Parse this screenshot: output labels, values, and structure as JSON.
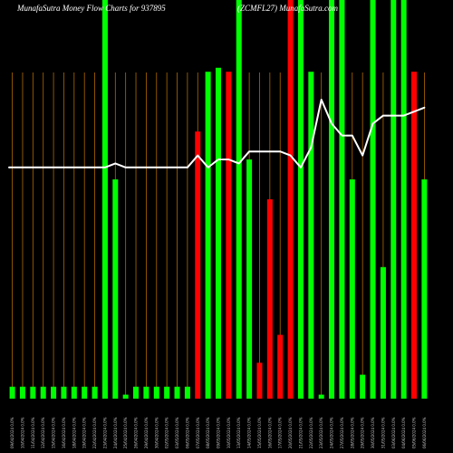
{
  "header": {
    "title_left": "MunafaSutra  Money Flow  Charts for 937895",
    "title_right": "(ZCMFL27) MunafaSutra.com"
  },
  "colors": {
    "background": "#000000",
    "up": "#00ff00",
    "down": "#ff0000",
    "gridline": "#b06a00",
    "line": "#ffffff"
  },
  "chart_data": {
    "type": "bar",
    "title": "",
    "xlabel": "",
    "ylabel": "",
    "ylim": [
      0,
      100
    ],
    "grid": "vertical",
    "categories": [
      "09/04/2024 0.0%",
      "10/04/2024 0.0%",
      "11/04/2024 0.0%",
      "12/04/2024 0.0%",
      "15/04/2024 0.0%",
      "16/04/2024 0.0%",
      "18/04/2024 0.0%",
      "19/04/2024 0.0%",
      "22/04/2024 0.0%",
      "23/04/2024 0.0%",
      "24/04/2024 0.0%",
      "25/04/2024 0.0%",
      "26/04/2024 0.0%",
      "29/04/2024 0.0%",
      "30/04/2024 0.0%",
      "02/05/2024 0.0%",
      "03/05/2024 0.0%",
      "06/05/2024 0.0%",
      "07/05/2024 0.0%",
      "08/05/2024 0.0%",
      "09/05/2024 0.0%",
      "10/05/2024 0.0%",
      "13/05/2024 0.0%",
      "14/05/2024 0.0%",
      "15/05/2024 0.0%",
      "16/05/2024 0.0%",
      "17/05/2024 0.0%",
      "20/05/2024 0.0%",
      "21/05/2024 0.0%",
      "22/05/2024 0.0%",
      "23/05/2024 0.0%",
      "24/05/2024 0.0%",
      "27/05/2024 0.0%",
      "28/05/2024 0.0%",
      "29/05/2024 0.0%",
      "30/05/2024 0.0%",
      "31/05/2024 0.0%",
      "03/06/2024 0.0%",
      "04/06/2024 0.0%",
      "05/06/2024 0.0%",
      "06/06/2024 0.0%"
    ],
    "series": [
      {
        "values": [
          3,
          3,
          3,
          3,
          3,
          3,
          3,
          3,
          3,
          100,
          55,
          1,
          3,
          3,
          3,
          3,
          3,
          3,
          67,
          82,
          83,
          82,
          100,
          60,
          9,
          50,
          16,
          100,
          100,
          82,
          1,
          100,
          100,
          55,
          6,
          100,
          33,
          100,
          100,
          82,
          55
        ],
        "directions": [
          "up",
          "up",
          "up",
          "up",
          "up",
          "up",
          "up",
          "up",
          "up",
          "up",
          "up",
          "up",
          "up",
          "up",
          "up",
          "up",
          "up",
          "up",
          "down",
          "up",
          "up",
          "down",
          "up",
          "up",
          "down",
          "down",
          "down",
          "down",
          "up",
          "up",
          "up",
          "up",
          "up",
          "up",
          "up",
          "up",
          "up",
          "up",
          "up",
          "down",
          "up"
        ]
      },
      {
        "line_values": [
          58,
          58,
          58,
          58,
          58,
          58,
          58,
          58,
          58,
          58,
          59,
          58,
          58,
          58,
          58,
          58,
          58,
          58,
          61,
          58,
          60,
          60,
          59,
          62,
          62,
          62,
          62,
          61,
          58,
          63,
          75,
          69,
          66,
          66,
          61,
          69,
          71,
          71,
          71,
          72,
          73
        ]
      }
    ]
  }
}
